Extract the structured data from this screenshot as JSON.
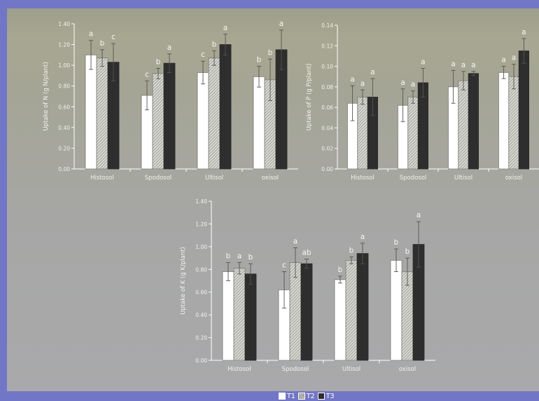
{
  "colors": {
    "T1": "#ffffff",
    "T2": "#cfcfc8",
    "T3": "#2e2e2e",
    "background": "#7276c6"
  },
  "legend": [
    {
      "label": "T1",
      "color": "#ffffff",
      "pattern": "open"
    },
    {
      "label": "T2",
      "color": "#cfcfc8",
      "pattern": "hatched"
    },
    {
      "label": "T3",
      "color": "#2e2e2e",
      "pattern": "solid"
    }
  ],
  "chart_data": [
    {
      "type": "bar",
      "ylabel": "Uptake of N (g N/plant)",
      "ylim": [
        0,
        1.4
      ],
      "yticks": [
        "0.00",
        "0.20",
        "0.40",
        "0.60",
        "0.80",
        "1.00",
        "1.20",
        "1.40"
      ],
      "categories": [
        "Histosol",
        "Spodosol",
        "Ultisol",
        "oxisol"
      ],
      "series": [
        {
          "name": "T1",
          "values": [
            1.1,
            0.71,
            0.93,
            0.89
          ],
          "errors": [
            0.14,
            0.14,
            0.11,
            0.1
          ],
          "labels": [
            "a",
            "c",
            "c",
            "b"
          ]
        },
        {
          "name": "T2",
          "values": [
            1.07,
            0.92,
            1.07,
            0.86
          ],
          "errors": [
            0.08,
            0.05,
            0.07,
            0.2
          ],
          "labels": [
            "b",
            "b",
            "b",
            "b"
          ]
        },
        {
          "name": "T3",
          "values": [
            1.03,
            1.02,
            1.2,
            1.15
          ],
          "errors": [
            0.18,
            0.09,
            0.1,
            0.19
          ],
          "labels": [
            "c",
            "a",
            "a",
            "a"
          ]
        }
      ]
    },
    {
      "type": "bar",
      "ylabel": "Uptake of P (g P/plant)",
      "ylim": [
        0,
        0.14
      ],
      "yticks": [
        "0.00",
        "0.02",
        "0.04",
        "0.06",
        "0.08",
        "0.10",
        "0.12",
        "0.14"
      ],
      "categories": [
        "Histosol",
        "Spodosol",
        "Ultisol",
        "oxisol"
      ],
      "series": [
        {
          "name": "T1",
          "values": [
            0.064,
            0.062,
            0.08,
            0.094
          ],
          "errors": [
            0.017,
            0.016,
            0.016,
            0.006
          ],
          "labels": [
            "a",
            "a",
            "a",
            "a"
          ]
        },
        {
          "name": "T2",
          "values": [
            0.07,
            0.07,
            0.086,
            0.09
          ],
          "errors": [
            0.007,
            0.006,
            0.009,
            0.012
          ],
          "labels": [
            "a",
            "a",
            "a",
            "a"
          ]
        },
        {
          "name": "T3",
          "values": [
            0.07,
            0.084,
            0.093,
            0.115
          ],
          "errors": [
            0.018,
            0.014,
            0.002,
            0.012
          ],
          "labels": [
            "a",
            "a",
            "a",
            "a"
          ]
        }
      ]
    },
    {
      "type": "bar",
      "ylabel": "Uptake of K (g K/plant)",
      "ylim": [
        0,
        1.4
      ],
      "yticks": [
        "0.00",
        "0.20",
        "0.40",
        "0.60",
        "0.80",
        "1.00",
        "1.20",
        "1.40"
      ],
      "categories": [
        "Histosol",
        "Spodosol",
        "Ultisol",
        "oxisol"
      ],
      "series": [
        {
          "name": "T1",
          "values": [
            0.78,
            0.62,
            0.71,
            0.88
          ],
          "errors": [
            0.08,
            0.16,
            0.03,
            0.1
          ],
          "labels": [
            "b",
            "c",
            "b",
            "b"
          ]
        },
        {
          "name": "T2",
          "values": [
            0.81,
            0.86,
            0.88,
            0.78
          ],
          "errors": [
            0.05,
            0.13,
            0.03,
            0.12
          ],
          "labels": [
            "a",
            "a",
            "b",
            "b"
          ]
        },
        {
          "name": "T3",
          "values": [
            0.76,
            0.85,
            0.94,
            1.02
          ],
          "errors": [
            0.09,
            0.04,
            0.09,
            0.2
          ],
          "labels": [
            "b",
            "ab",
            "a",
            "a"
          ]
        }
      ]
    }
  ]
}
